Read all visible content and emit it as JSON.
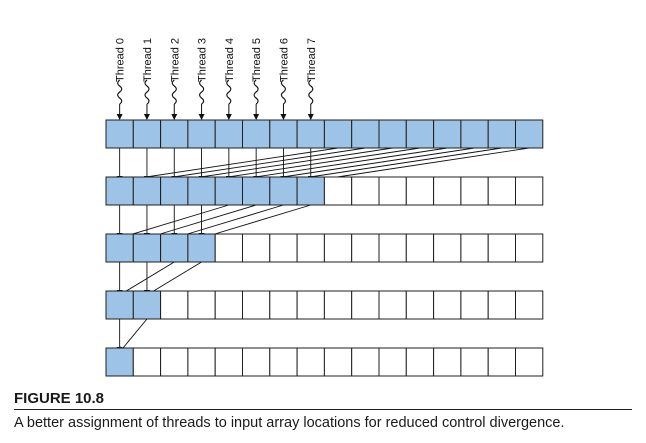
{
  "threads": [
    "Thread 0",
    "Thread 1",
    "Thread 2",
    "Thread 3",
    "Thread 4",
    "Thread 5",
    "Thread 6",
    "Thread 7"
  ],
  "rows": [
    {
      "filled": 16
    },
    {
      "filled": 8
    },
    {
      "filled": 4
    },
    {
      "filled": 2
    },
    {
      "filled": 1
    }
  ],
  "columns": 16,
  "colors": {
    "filled": "#9dc3e6",
    "empty": "#ffffff",
    "border": "#1f1f1f",
    "arrow": "#111111"
  },
  "figure": {
    "label": "FIGURE 10.8",
    "caption": "A better assignment of threads to input array locations for reduced control divergence."
  }
}
